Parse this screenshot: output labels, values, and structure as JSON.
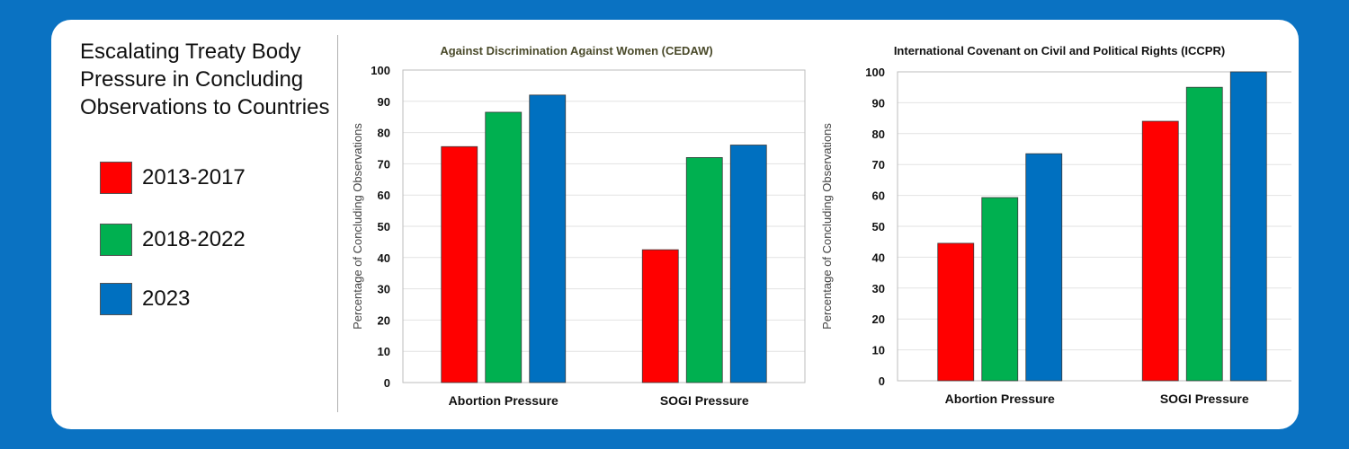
{
  "title": "Escalating Treaty Body Pressure in Concluding Observations to Countries",
  "legend": [
    {
      "label": "2013-2017",
      "color": "#ff0000"
    },
    {
      "label": "2018-2022",
      "color": "#00b050"
    },
    {
      "label": "2023",
      "color": "#0070c0"
    }
  ],
  "chart_data": [
    {
      "type": "bar",
      "title": "Against Discrimination Against Women (CEDAW)",
      "ylabel": "Percentage of Concluding Observations",
      "categories": [
        "Abortion Pressure",
        "SOGI Pressure"
      ],
      "series": [
        {
          "name": "2013-2017",
          "values": [
            75.5,
            42.5
          ]
        },
        {
          "name": "2018-2022",
          "values": [
            86.5,
            72
          ]
        },
        {
          "name": "2023",
          "values": [
            92,
            76
          ]
        }
      ],
      "ylim": [
        0,
        100
      ],
      "yticks": [
        0,
        10,
        20,
        30,
        40,
        50,
        60,
        70,
        80,
        90,
        100
      ],
      "grid": true
    },
    {
      "type": "bar",
      "title": "International Covenant on Civil and Political Rights (ICCPR)",
      "ylabel": "Percentage of Concluding Observations",
      "categories": [
        "Abortion Pressure",
        "SOGI Pressure"
      ],
      "series": [
        {
          "name": "2013-2017",
          "values": [
            44.5,
            84
          ]
        },
        {
          "name": "2018-2022",
          "values": [
            59.3,
            95
          ]
        },
        {
          "name": "2023",
          "values": [
            73.5,
            100
          ]
        }
      ],
      "ylim": [
        0,
        100
      ],
      "yticks": [
        0,
        10,
        20,
        30,
        40,
        50,
        60,
        70,
        80,
        90,
        100
      ],
      "grid": true
    }
  ]
}
